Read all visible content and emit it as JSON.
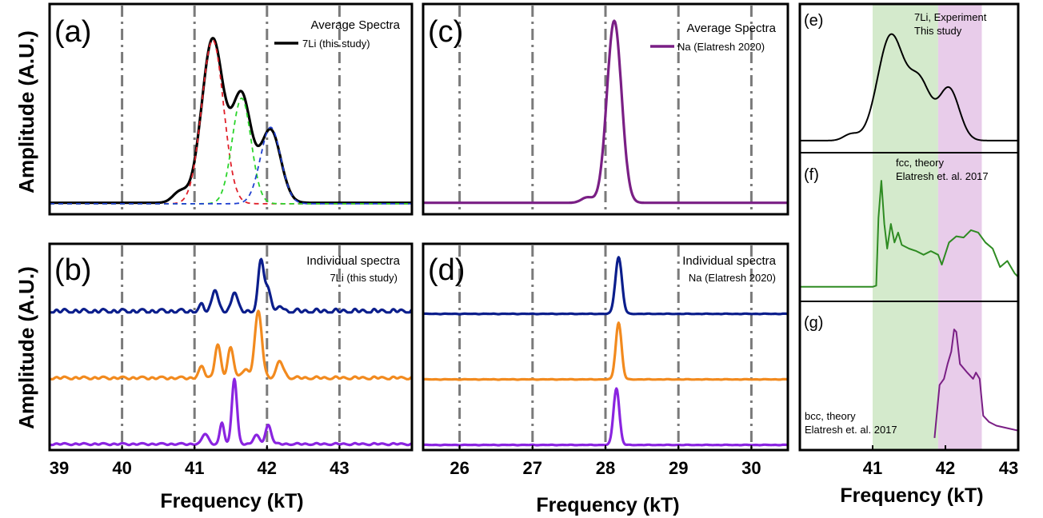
{
  "colors": {
    "black": "#000000",
    "red_fit": "#e0202a",
    "green_fit": "#2bd42b",
    "blue_fit": "#1f3fd0",
    "navy": "#0b1e8c",
    "orange": "#f28a1e",
    "violet": "#8a24e0",
    "purple": "#7a1f85",
    "forest": "#2e8b22",
    "grid": "#7a7a7a",
    "green_band": "#cfe8c7",
    "purple_band": "#e6c6e8"
  },
  "axes": {
    "y_label": "Amplitude (A.U.)",
    "x_label": "Frequency (kT)"
  },
  "chart_data": [
    {
      "id": "a",
      "panel_label": "(a)",
      "type": "line",
      "legend_title": "Average Spectra",
      "x_range": [
        39,
        44
      ],
      "x_ticks": [
        39,
        40,
        41,
        42,
        43
      ],
      "y_range": [
        0,
        1.05
      ],
      "grid": "vertical dash-dot at 40, 41, 42, 43",
      "legend_position": "top-right",
      "series": [
        {
          "name": "7Li (this study)",
          "color": "#000000",
          "style": "solid",
          "peaks": [
            [
              40.8,
              0.06,
              0.1
            ],
            [
              41.25,
              0.9,
              0.15
            ],
            [
              41.65,
              0.58,
              0.13
            ],
            [
              42.05,
              0.4,
              0.14
            ]
          ],
          "baseline": 0.01
        },
        {
          "color": "#e0202a",
          "style": "dashed",
          "peaks": [
            [
              41.25,
              0.9,
              0.15
            ]
          ],
          "baseline": 0.005
        },
        {
          "color": "#2bd42b",
          "style": "dashed",
          "peaks": [
            [
              41.65,
              0.58,
              0.13
            ]
          ],
          "baseline": 0.005
        },
        {
          "color": "#1f3fd0",
          "style": "dashed",
          "peaks": [
            [
              42.05,
              0.42,
              0.14
            ]
          ],
          "baseline": 0.005
        }
      ]
    },
    {
      "id": "b",
      "panel_label": "(b)",
      "type": "line",
      "legend_title": "Individual spectra",
      "legend_subtitle": "7Li (this study)",
      "x_range": [
        39,
        44
      ],
      "x_ticks": [
        39,
        40,
        41,
        42,
        43,
        44
      ],
      "x_tick_labels": [
        "39",
        "40",
        "41",
        "42",
        "43"
      ],
      "y_range": [
        0,
        3.3
      ],
      "series": [
        {
          "color": "#0b1e8c",
          "offset": 2.2,
          "peaks": [
            [
              41.28,
              0.37,
              0.04
            ],
            [
              41.55,
              0.33,
              0.04
            ],
            [
              41.92,
              0.85,
              0.04
            ],
            [
              42.02,
              0.35,
              0.04
            ],
            [
              41.1,
              0.1,
              0.03
            ],
            [
              42.2,
              0.08,
              0.03
            ]
          ],
          "ripple": 0.05
        },
        {
          "color": "#f28a1e",
          "offset": 1.1,
          "peaks": [
            [
              41.1,
              0.18,
              0.04
            ],
            [
              41.32,
              0.55,
              0.04
            ],
            [
              41.5,
              0.52,
              0.04
            ],
            [
              41.88,
              1.1,
              0.05
            ],
            [
              42.18,
              0.27,
              0.05
            ],
            [
              41.7,
              0.15,
              0.04
            ]
          ],
          "ripple": 0.03
        },
        {
          "color": "#8a24e0",
          "offset": 0.0,
          "peaks": [
            [
              41.15,
              0.18,
              0.04
            ],
            [
              41.38,
              0.35,
              0.03
            ],
            [
              41.55,
              1.1,
              0.035
            ],
            [
              41.85,
              0.15,
              0.04
            ],
            [
              42.02,
              0.32,
              0.04
            ]
          ],
          "ripple": 0.02
        }
      ]
    },
    {
      "id": "c",
      "panel_label": "(c)",
      "type": "line",
      "legend_title": "Average Spectra",
      "x_range": [
        25.5,
        30.5
      ],
      "x_ticks": [
        26,
        27,
        28,
        29,
        30
      ],
      "y_range": [
        0,
        1.05
      ],
      "grid": "vertical dash-dot at 26, 27, 28, 29, 30",
      "legend_position": "top-right",
      "series": [
        {
          "name": "Na (Elatresh 2020)",
          "color": "#7a1f85",
          "style": "solid",
          "peaks": [
            [
              28.12,
              1.0,
              0.1
            ],
            [
              27.75,
              0.03,
              0.08
            ]
          ],
          "baseline": 0.01
        }
      ]
    },
    {
      "id": "d",
      "panel_label": "(d)",
      "type": "line",
      "legend_title": "Individual spectra",
      "legend_subtitle": "Na (Elatresh 2020)",
      "x_range": [
        25.5,
        30.5
      ],
      "x_ticks": [
        26,
        27,
        28,
        29,
        30
      ],
      "y_range": [
        0,
        3.3
      ],
      "series": [
        {
          "color": "#0b1e8c",
          "offset": 2.2,
          "peaks": [
            [
              28.18,
              0.95,
              0.045
            ]
          ],
          "ripple": 0.005
        },
        {
          "color": "#f28a1e",
          "offset": 1.1,
          "peaks": [
            [
              28.18,
              0.95,
              0.04
            ]
          ],
          "ripple": 0.005
        },
        {
          "color": "#8a24e0",
          "offset": 0.0,
          "peaks": [
            [
              28.15,
              0.95,
              0.04
            ]
          ],
          "ripple": 0.005
        }
      ]
    },
    {
      "id": "e",
      "panel_label": "(e)",
      "type": "line",
      "legend_title": "7Li, Experiment",
      "legend_subtitle": "This study",
      "x_range": [
        40,
        43
      ],
      "y_range": [
        0,
        1.05
      ],
      "bands": [
        {
          "from": 41.0,
          "to": 41.9,
          "color": "green"
        },
        {
          "from": 41.9,
          "to": 42.5,
          "color": "purple"
        }
      ],
      "series": [
        {
          "color": "#000000",
          "peaks": [
            [
              40.7,
              0.05,
              0.1
            ],
            [
              41.25,
              0.85,
              0.18
            ],
            [
              41.65,
              0.45,
              0.15
            ],
            [
              42.05,
              0.42,
              0.14
            ]
          ],
          "baseline": 0.02
        }
      ]
    },
    {
      "id": "f",
      "panel_label": "(f)",
      "type": "line",
      "legend_title": "fcc, theory",
      "legend_subtitle": "Elatresh et. al. 2017",
      "x_range": [
        40,
        43
      ],
      "y_range": [
        0,
        1.05
      ],
      "bands": [
        {
          "from": 41.0,
          "to": 41.9,
          "color": "green"
        },
        {
          "from": 41.9,
          "to": 42.5,
          "color": "purple"
        }
      ],
      "series": [
        {
          "color": "#2e8b22",
          "points": [
            [
              40,
              0.04
            ],
            [
              41.0,
              0.04
            ],
            [
              41.05,
              0.05
            ],
            [
              41.08,
              0.6
            ],
            [
              41.12,
              0.9
            ],
            [
              41.16,
              0.55
            ],
            [
              41.2,
              0.35
            ],
            [
              41.25,
              0.55
            ],
            [
              41.3,
              0.4
            ],
            [
              41.35,
              0.48
            ],
            [
              41.4,
              0.38
            ],
            [
              41.5,
              0.35
            ],
            [
              41.6,
              0.33
            ],
            [
              41.7,
              0.3
            ],
            [
              41.8,
              0.33
            ],
            [
              41.9,
              0.3
            ],
            [
              41.95,
              0.22
            ],
            [
              42.05,
              0.4
            ],
            [
              42.15,
              0.45
            ],
            [
              42.25,
              0.44
            ],
            [
              42.35,
              0.5
            ],
            [
              42.45,
              0.48
            ],
            [
              42.55,
              0.4
            ],
            [
              42.65,
              0.35
            ],
            [
              42.75,
              0.2
            ],
            [
              42.85,
              0.25
            ],
            [
              42.95,
              0.15
            ],
            [
              43.0,
              0.12
            ]
          ]
        }
      ]
    },
    {
      "id": "g",
      "panel_label": "(g)",
      "type": "line",
      "legend_title": "bcc, theory",
      "legend_subtitle": "Elatresh et. al. 2017",
      "x_range": [
        40,
        43
      ],
      "x_ticks": [
        40,
        41,
        42,
        43
      ],
      "x_tick_labels": [
        "41",
        "42",
        "43"
      ],
      "y_range": [
        0,
        1.05
      ],
      "bands": [
        {
          "from": 41.0,
          "to": 41.9,
          "color": "green"
        },
        {
          "from": 41.9,
          "to": 42.5,
          "color": "purple"
        }
      ],
      "series": [
        {
          "color": "#7a1f85",
          "points": [
            [
              41.85,
              0.02
            ],
            [
              41.92,
              0.45
            ],
            [
              41.98,
              0.5
            ],
            [
              42.03,
              0.62
            ],
            [
              42.08,
              0.72
            ],
            [
              42.12,
              0.9
            ],
            [
              42.15,
              0.88
            ],
            [
              42.2,
              0.62
            ],
            [
              42.3,
              0.55
            ],
            [
              42.38,
              0.5
            ],
            [
              42.42,
              0.55
            ],
            [
              42.47,
              0.5
            ],
            [
              42.52,
              0.2
            ],
            [
              42.6,
              0.15
            ],
            [
              42.7,
              0.12
            ],
            [
              42.85,
              0.1
            ],
            [
              43.0,
              0.08
            ]
          ]
        }
      ]
    }
  ]
}
